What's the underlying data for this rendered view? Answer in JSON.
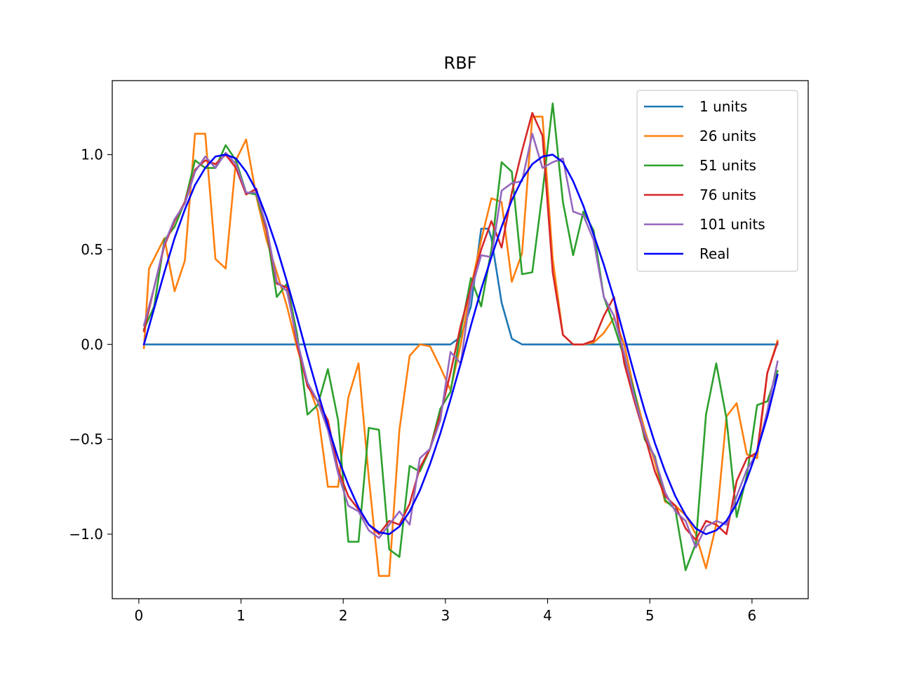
{
  "chart_data": {
    "type": "line",
    "title": "RBF",
    "xlabel": "",
    "ylabel": "",
    "xlim": [
      -0.26,
      6.55
    ],
    "ylim": [
      -1.34,
      1.39
    ],
    "xticks": [
      0,
      1,
      2,
      3,
      4,
      5,
      6
    ],
    "xtick_labels": [
      "0",
      "1",
      "2",
      "3",
      "4",
      "5",
      "6"
    ],
    "yticks": [
      -1.0,
      -0.5,
      0.0,
      0.5,
      1.0
    ],
    "ytick_labels": [
      "−1.0",
      "−0.5",
      "0.0",
      "0.5",
      "1.0"
    ],
    "grid": false,
    "legend_position": "upper right",
    "series": [
      {
        "name": "1 units",
        "color": "#1f77b4",
        "x": [
          0.05,
          0.5,
          1.0,
          1.5,
          2.0,
          2.5,
          3.0,
          3.05,
          3.15,
          3.25,
          3.35,
          3.42,
          3.45,
          3.55,
          3.65,
          3.75,
          3.85,
          4.0,
          4.5,
          5.0,
          5.5,
          6.0,
          6.25
        ],
        "y": [
          0.0,
          0.0,
          0.0,
          0.0,
          0.0,
          0.0,
          0.0,
          0.0,
          0.04,
          0.2,
          0.61,
          0.61,
          0.56,
          0.22,
          0.03,
          0.0,
          0.0,
          0.0,
          0.0,
          0.0,
          0.0,
          0.0,
          0.0
        ]
      },
      {
        "name": "26 units",
        "color": "#ff7f0e",
        "x": [
          0.05,
          0.1,
          0.25,
          0.35,
          0.45,
          0.55,
          0.65,
          0.75,
          0.85,
          0.95,
          1.05,
          1.15,
          1.25,
          1.35,
          1.45,
          1.55,
          1.65,
          1.75,
          1.85,
          1.95,
          2.05,
          2.15,
          2.25,
          2.35,
          2.45,
          2.55,
          2.65,
          2.75,
          2.85,
          2.95,
          3.05,
          3.15,
          3.25,
          3.35,
          3.45,
          3.55,
          3.65,
          3.75,
          3.85,
          3.95,
          4.05,
          4.15,
          4.25,
          4.35,
          4.45,
          4.55,
          4.65,
          4.75,
          4.85,
          4.95,
          5.05,
          5.15,
          5.25,
          5.35,
          5.45,
          5.55,
          5.65,
          5.75,
          5.85,
          5.95,
          6.05,
          6.15,
          6.25
        ],
        "y": [
          -0.02,
          0.4,
          0.56,
          0.28,
          0.44,
          1.11,
          1.11,
          0.45,
          0.4,
          0.97,
          1.08,
          0.78,
          0.55,
          0.38,
          0.2,
          -0.02,
          -0.2,
          -0.35,
          -0.75,
          -0.75,
          -0.28,
          -0.1,
          -0.7,
          -1.22,
          -1.22,
          -0.45,
          -0.06,
          0.0,
          -0.01,
          -0.12,
          -0.24,
          0.0,
          0.3,
          0.55,
          0.77,
          0.75,
          0.33,
          0.48,
          1.2,
          1.2,
          0.45,
          0.05,
          0.0,
          0.0,
          0.01,
          0.06,
          0.14,
          0.0,
          -0.25,
          -0.45,
          -0.62,
          -0.83,
          -0.85,
          -0.9,
          -1.0,
          -1.18,
          -0.95,
          -0.38,
          -0.31,
          -0.58,
          -0.6,
          -0.15,
          0.02
        ]
      },
      {
        "name": "51 units",
        "color": "#2ca02c",
        "x": [
          0.05,
          0.15,
          0.25,
          0.35,
          0.45,
          0.55,
          0.65,
          0.75,
          0.85,
          0.95,
          1.05,
          1.15,
          1.25,
          1.35,
          1.45,
          1.55,
          1.65,
          1.75,
          1.85,
          1.95,
          2.05,
          2.15,
          2.25,
          2.35,
          2.45,
          2.55,
          2.65,
          2.75,
          2.85,
          2.95,
          3.05,
          3.15,
          3.25,
          3.35,
          3.45,
          3.55,
          3.65,
          3.75,
          3.85,
          3.95,
          4.05,
          4.15,
          4.25,
          4.35,
          4.45,
          4.55,
          4.65,
          4.75,
          4.85,
          4.95,
          5.05,
          5.15,
          5.25,
          5.35,
          5.45,
          5.55,
          5.65,
          5.75,
          5.85,
          5.95,
          6.05,
          6.15,
          6.25
        ],
        "y": [
          0.08,
          0.2,
          0.55,
          0.62,
          0.75,
          0.97,
          0.93,
          0.93,
          1.05,
          0.97,
          0.8,
          0.79,
          0.6,
          0.25,
          0.32,
          0.05,
          -0.37,
          -0.32,
          -0.13,
          -0.4,
          -1.04,
          -1.04,
          -0.44,
          -0.45,
          -1.08,
          -1.12,
          -0.64,
          -0.67,
          -0.55,
          -0.34,
          -0.25,
          0.07,
          0.35,
          0.2,
          0.5,
          0.96,
          0.91,
          0.37,
          0.38,
          0.8,
          1.27,
          0.75,
          0.47,
          0.7,
          0.6,
          0.25,
          0.1,
          -0.07,
          -0.25,
          -0.5,
          -0.59,
          -0.82,
          -0.87,
          -1.19,
          -1.05,
          -0.37,
          -0.1,
          -0.39,
          -0.91,
          -0.69,
          -0.32,
          -0.3,
          -0.14
        ]
      },
      {
        "name": "76 units",
        "color": "#d62728",
        "x": [
          0.05,
          0.15,
          0.25,
          0.35,
          0.45,
          0.55,
          0.65,
          0.75,
          0.85,
          0.95,
          1.05,
          1.15,
          1.25,
          1.35,
          1.45,
          1.55,
          1.65,
          1.75,
          1.85,
          1.95,
          2.05,
          2.15,
          2.25,
          2.35,
          2.45,
          2.55,
          2.65,
          2.75,
          2.85,
          2.95,
          3.05,
          3.15,
          3.25,
          3.35,
          3.45,
          3.55,
          3.65,
          3.75,
          3.85,
          3.95,
          4.05,
          4.15,
          4.25,
          4.35,
          4.45,
          4.55,
          4.65,
          4.75,
          4.85,
          4.95,
          5.05,
          5.15,
          5.25,
          5.35,
          5.45,
          5.55,
          5.65,
          5.75,
          5.85,
          5.95,
          6.05,
          6.15,
          6.25
        ],
        "y": [
          0.07,
          0.3,
          0.52,
          0.65,
          0.75,
          0.92,
          0.97,
          0.95,
          1.0,
          0.93,
          0.79,
          0.82,
          0.6,
          0.32,
          0.3,
          0.0,
          -0.22,
          -0.3,
          -0.4,
          -0.66,
          -0.8,
          -0.87,
          -0.95,
          -1.0,
          -0.93,
          -0.95,
          -0.84,
          -0.65,
          -0.55,
          -0.37,
          -0.15,
          0.1,
          0.3,
          0.5,
          0.65,
          0.51,
          0.8,
          1.02,
          1.22,
          1.1,
          0.38,
          0.05,
          0.0,
          0.0,
          0.02,
          0.15,
          0.25,
          -0.1,
          -0.3,
          -0.48,
          -0.67,
          -0.8,
          -0.85,
          -0.97,
          -1.03,
          -0.93,
          -0.95,
          -1.0,
          -0.72,
          -0.6,
          -0.57,
          -0.15,
          0.01
        ]
      },
      {
        "name": "101 units",
        "color": "#9467bd",
        "x": [
          0.05,
          0.15,
          0.25,
          0.35,
          0.45,
          0.55,
          0.65,
          0.75,
          0.85,
          0.95,
          1.05,
          1.15,
          1.25,
          1.35,
          1.45,
          1.55,
          1.65,
          1.75,
          1.85,
          1.95,
          2.05,
          2.15,
          2.25,
          2.35,
          2.45,
          2.55,
          2.65,
          2.75,
          2.85,
          2.95,
          3.05,
          3.15,
          3.25,
          3.35,
          3.45,
          3.55,
          3.65,
          3.75,
          3.85,
          3.95,
          4.05,
          4.15,
          4.25,
          4.35,
          4.45,
          4.55,
          4.65,
          4.75,
          4.85,
          4.95,
          5.05,
          5.15,
          5.25,
          5.35,
          5.45,
          5.55,
          5.65,
          5.75,
          5.85,
          5.95,
          6.05,
          6.15,
          6.25
        ],
        "y": [
          0.1,
          0.3,
          0.53,
          0.66,
          0.74,
          0.91,
          0.99,
          0.93,
          1.01,
          0.95,
          0.8,
          0.8,
          0.62,
          0.33,
          0.28,
          0.02,
          -0.2,
          -0.3,
          -0.45,
          -0.68,
          -0.85,
          -0.88,
          -0.98,
          -1.02,
          -0.95,
          -0.88,
          -0.95,
          -0.6,
          -0.55,
          -0.4,
          -0.04,
          -0.1,
          0.28,
          0.47,
          0.46,
          0.81,
          0.85,
          0.86,
          1.11,
          0.93,
          0.96,
          0.98,
          0.7,
          0.68,
          0.55,
          0.25,
          0.15,
          -0.05,
          -0.28,
          -0.47,
          -0.6,
          -0.78,
          -0.88,
          -0.93,
          -1.07,
          -0.96,
          -0.93,
          -0.95,
          -0.8,
          -0.66,
          -0.57,
          -0.35,
          -0.09
        ]
      },
      {
        "name": "Real",
        "color": "#0000ff",
        "x": [
          0.05,
          0.15,
          0.25,
          0.35,
          0.45,
          0.55,
          0.65,
          0.75,
          0.85,
          0.95,
          1.05,
          1.15,
          1.25,
          1.35,
          1.45,
          1.55,
          1.65,
          1.75,
          1.85,
          1.95,
          2.05,
          2.15,
          2.25,
          2.35,
          2.45,
          2.55,
          2.65,
          2.75,
          2.85,
          2.95,
          3.05,
          3.15,
          3.25,
          3.35,
          3.45,
          3.55,
          3.65,
          3.75,
          3.85,
          3.95,
          4.05,
          4.15,
          4.25,
          4.35,
          4.45,
          4.55,
          4.65,
          4.75,
          4.85,
          4.95,
          5.05,
          5.15,
          5.25,
          5.35,
          5.45,
          5.55,
          5.65,
          5.75,
          5.85,
          5.95,
          6.05,
          6.15,
          6.25
        ],
        "y": [
          0.0,
          0.19,
          0.38,
          0.56,
          0.71,
          0.84,
          0.93,
          0.99,
          1.0,
          0.98,
          0.91,
          0.81,
          0.67,
          0.51,
          0.33,
          0.14,
          -0.06,
          -0.25,
          -0.43,
          -0.6,
          -0.74,
          -0.86,
          -0.95,
          -0.99,
          -1.0,
          -0.96,
          -0.88,
          -0.77,
          -0.63,
          -0.47,
          -0.29,
          -0.1,
          0.1,
          0.29,
          0.46,
          0.62,
          0.76,
          0.87,
          0.95,
          0.99,
          1.0,
          0.96,
          0.86,
          0.73,
          0.58,
          0.42,
          0.24,
          0.04,
          -0.16,
          -0.35,
          -0.52,
          -0.67,
          -0.8,
          -0.9,
          -0.97,
          -1.0,
          -0.98,
          -0.93,
          -0.84,
          -0.71,
          -0.56,
          -0.38,
          -0.16
        ]
      }
    ]
  }
}
